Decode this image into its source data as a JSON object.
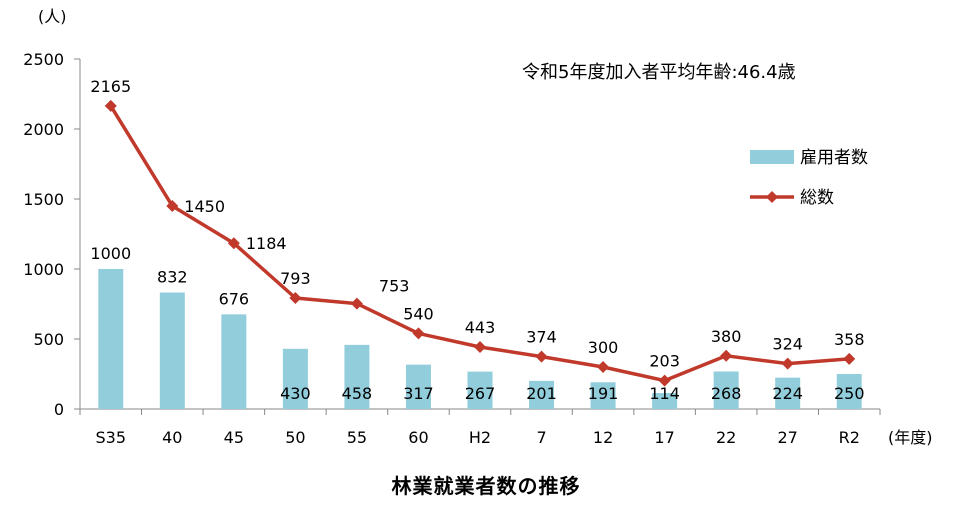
{
  "chart_data": {
    "type": "bar+line",
    "title": "林業就業者数の推移",
    "annotation": "令和5年度加入者平均年齢:46.4歳",
    "ylabel": "(人)",
    "xlabel": "(年度)",
    "ylim": [
      0,
      2500
    ],
    "yticks": [
      "0",
      "500",
      "1000",
      "1500",
      "2000",
      "2500"
    ],
    "categories": [
      "S35",
      "40",
      "45",
      "50",
      "55",
      "60",
      "H2",
      "7",
      "12",
      "17",
      "22",
      "27",
      "R2"
    ],
    "series": [
      {
        "name": "雇用者数",
        "type": "bar",
        "color": "#92cddc",
        "values": [
          1000,
          832,
          676,
          430,
          458,
          317,
          267,
          201,
          191,
          114,
          268,
          224,
          250
        ]
      },
      {
        "name": "総数",
        "type": "line",
        "color": "#c0392b",
        "values": [
          2165,
          1450,
          1184,
          793,
          753,
          540,
          443,
          374,
          300,
          203,
          380,
          324,
          358
        ]
      }
    ],
    "legend_position": "right",
    "grid": false
  }
}
